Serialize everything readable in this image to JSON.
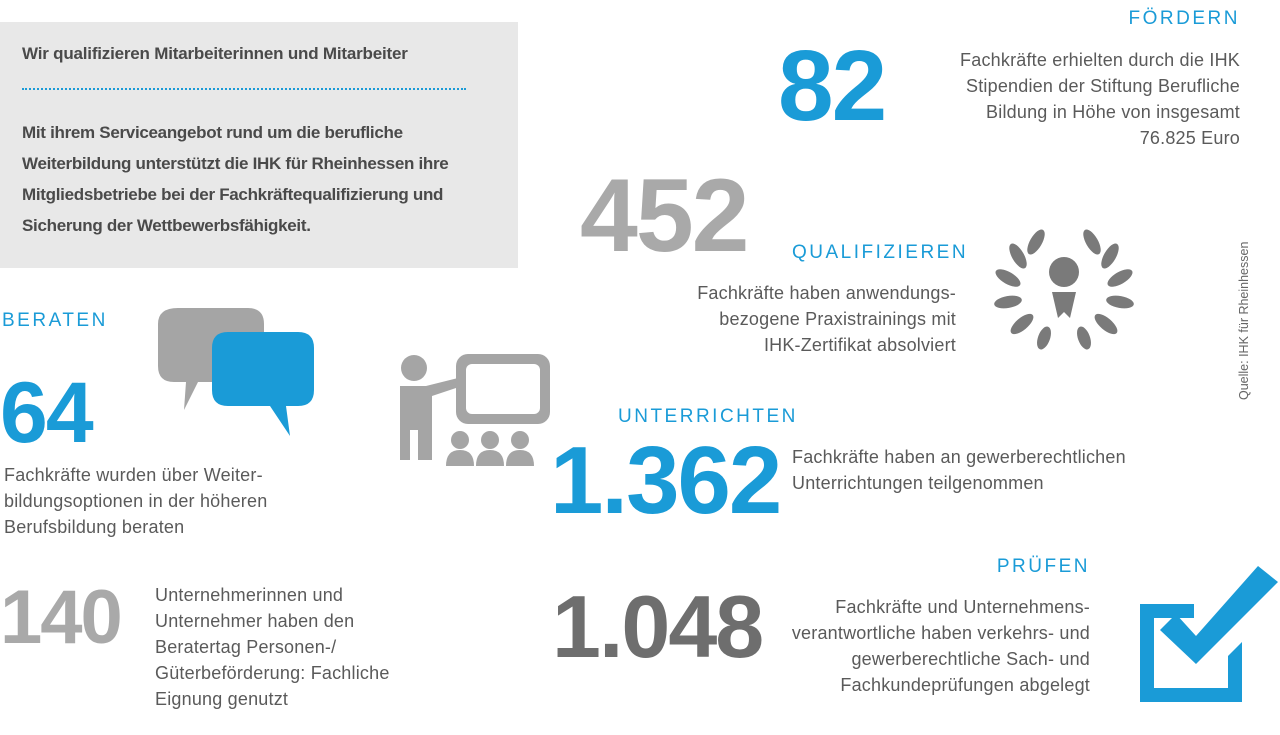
{
  "intro": {
    "title": "Wir qualifizieren Mitarbeiterinnen und Mitarbeiter",
    "text": "Mit ihrem Serviceangebot rund um die berufliche Weiterbildung unterstützt die IHK für Rheinhessen ihre Mitgliedsbetriebe bei der Fachkräftequalifizierung und Sicherung der Wettbewerbsfähigkeit."
  },
  "foerdern": {
    "heading": "FÖRDERN",
    "number": "82",
    "text": "Fachkräfte erhielten durch die IHK Stipendien der Stiftung Berufliche Bildung in Höhe von insgesamt 76.825 Euro"
  },
  "qualifizieren": {
    "heading": "QUALIFIZIEREN",
    "number": "452",
    "text": "Fachkräfte haben anwendungs-bezogene Praxistrainings mit IHK-Zertifikat absolviert",
    "icon": "laurel-wreath-medal-icon"
  },
  "beraten": {
    "heading": "BERATEN",
    "number": "64",
    "text": "Fachkräfte wurden über Weiter-bildungsoptionen in der höheren Berufsbildung beraten",
    "number2": "140",
    "text2": "Unternehmerinnen und Unternehmer haben den Beratertag Personen-/ Güterbeförderung: Fachliche Eignung genutzt",
    "icon": "speech-bubbles-icon"
  },
  "unterrichten": {
    "heading": "UNTERRICHTEN",
    "number": "1.362",
    "text": "Fachkräfte haben an gewerberechtlichen Unterrichtungen teilgenommen",
    "icon": "teacher-presentation-icon"
  },
  "pruefen": {
    "heading": "PRÜFEN",
    "number": "1.048",
    "text": "Fachkräfte und Unternehmens-verantwortliche haben verkehrs- und gewerberechtliche Sach- und Fachkundeprüfungen abgelegt",
    "icon": "checkbox-check-icon"
  },
  "source": "Quelle: IHK für Rheinhessen",
  "colors": {
    "accent": "#1a9bd7",
    "gray_number": "#a9a9a9",
    "dark_number": "#6e6e6e",
    "box": "#e8e8e8"
  }
}
